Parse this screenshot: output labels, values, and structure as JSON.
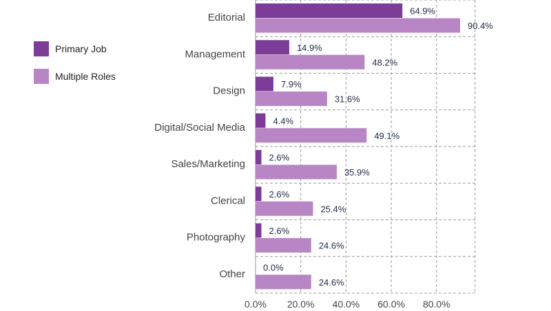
{
  "chart_data": {
    "type": "bar",
    "orientation": "horizontal",
    "categories": [
      "Editorial",
      "Management",
      "Design",
      "Digital/Social Media",
      "Sales/Marketing",
      "Clerical",
      "Photography",
      "Other"
    ],
    "series": [
      {
        "name": "Primary Job",
        "values": [
          64.9,
          14.9,
          7.9,
          4.4,
          2.6,
          2.6,
          2.6,
          0.0
        ],
        "labels": [
          "64.9%",
          "14.9%",
          "7.9%",
          "4.4%",
          "2.6%",
          "2.6%",
          "2.6%",
          "0.0%"
        ],
        "color": "#7d3c98"
      },
      {
        "name": "Multiple Roles",
        "values": [
          90.4,
          48.2,
          31.6,
          49.1,
          35.9,
          25.4,
          24.6,
          24.6
        ],
        "labels": [
          "90.4%",
          "48.2%",
          "31.6%",
          "49.1%",
          "35.9%",
          "25.4%",
          "24.6%",
          "24.6%"
        ],
        "color": "#b886c4"
      }
    ],
    "xlim": [
      0,
      97
    ],
    "xticks": [
      0,
      20,
      40,
      60,
      80
    ],
    "xtick_labels": [
      "0.0%",
      "20.0%",
      "40.0%",
      "60.0%",
      "80.0%"
    ],
    "grid": true,
    "legend_position": "left"
  }
}
